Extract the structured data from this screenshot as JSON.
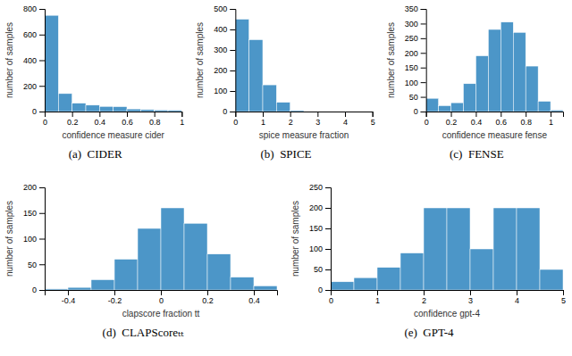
{
  "chart_data": [
    {
      "type": "histogram",
      "title": "(a)  CIDER",
      "xlabel": "confidence measure cider",
      "ylabel": "number of samples",
      "bins": [
        0.0,
        0.1,
        0.2,
        0.3,
        0.4,
        0.5,
        0.6,
        0.7,
        0.8,
        0.9,
        1.0
      ],
      "values": [
        750,
        140,
        65,
        50,
        40,
        38,
        20,
        15,
        12,
        10
      ],
      "color": "#4C96C8",
      "xlim": [
        0,
        1
      ],
      "xticks": [
        0,
        0.2,
        0.4,
        0.6,
        0.8,
        1
      ],
      "ylim": [
        0,
        800
      ],
      "yticks": [
        0,
        200,
        400,
        600,
        800
      ]
    },
    {
      "type": "histogram",
      "title": "(b)  SPICE",
      "xlabel": "spice measure fraction",
      "ylabel": "number of samples",
      "bins": [
        0.0,
        0.5,
        1.0,
        1.5,
        2.0,
        2.5,
        3.0,
        3.5,
        4.0,
        4.5,
        5.0
      ],
      "values": [
        450,
        350,
        130,
        45,
        5,
        0,
        0,
        0,
        0,
        0
      ],
      "color": "#4C96C8",
      "xlim": [
        0,
        5
      ],
      "xticks": [
        0,
        1,
        2,
        3,
        4,
        5
      ],
      "ylim": [
        0,
        500
      ],
      "yticks": [
        0,
        100,
        200,
        300,
        400,
        500
      ]
    },
    {
      "type": "histogram",
      "title": "(c)  FENSE",
      "xlabel": "confidence measure fense",
      "ylabel": "number of samples",
      "bins": [
        0.0,
        0.1,
        0.2,
        0.3,
        0.4,
        0.5,
        0.6,
        0.7,
        0.8,
        0.9,
        1.0,
        1.1
      ],
      "values": [
        45,
        20,
        30,
        95,
        190,
        280,
        305,
        270,
        155,
        35,
        5
      ],
      "color": "#4C96C8",
      "xlim": [
        0,
        1.1
      ],
      "xticks": [
        0,
        0.2,
        0.4,
        0.6,
        0.8,
        1
      ],
      "ylim": [
        0,
        350
      ],
      "yticks": [
        0,
        50,
        100,
        150,
        200,
        250,
        300,
        350
      ]
    },
    {
      "type": "histogram",
      "title": "(d)  CLAPScoreₜₜ",
      "xlabel": "clapscore fraction tt",
      "ylabel": "number of samples",
      "bins": [
        -0.5,
        -0.4,
        -0.3,
        -0.2,
        -0.1,
        0.0,
        0.1,
        0.2,
        0.3,
        0.4,
        0.5
      ],
      "values": [
        2,
        5,
        20,
        60,
        120,
        160,
        130,
        70,
        25,
        8
      ],
      "color": "#4C96C8",
      "xlim": [
        -0.5,
        0.5
      ],
      "xticks": [
        -0.4,
        -0.2,
        0,
        0.2,
        0.4
      ],
      "ylim": [
        0,
        200
      ],
      "yticks": [
        0,
        50,
        100,
        150,
        200
      ]
    },
    {
      "type": "histogram",
      "title": "(e)  GPT-4",
      "xlabel": "confidence gpt-4",
      "ylabel": "number of samples",
      "bins": [
        0.0,
        0.5,
        1.0,
        1.5,
        2.0,
        2.5,
        3.0,
        3.5,
        4.0,
        4.5,
        5.0
      ],
      "values": [
        20,
        30,
        55,
        90,
        200,
        200,
        100,
        200,
        200,
        50
      ],
      "color": "#4C96C8",
      "xlim": [
        0,
        5
      ],
      "xticks": [
        0,
        1,
        2,
        3,
        4,
        5
      ],
      "ylim": [
        0,
        250
      ],
      "yticks": [
        0,
        50,
        100,
        150,
        200,
        250
      ]
    }
  ]
}
